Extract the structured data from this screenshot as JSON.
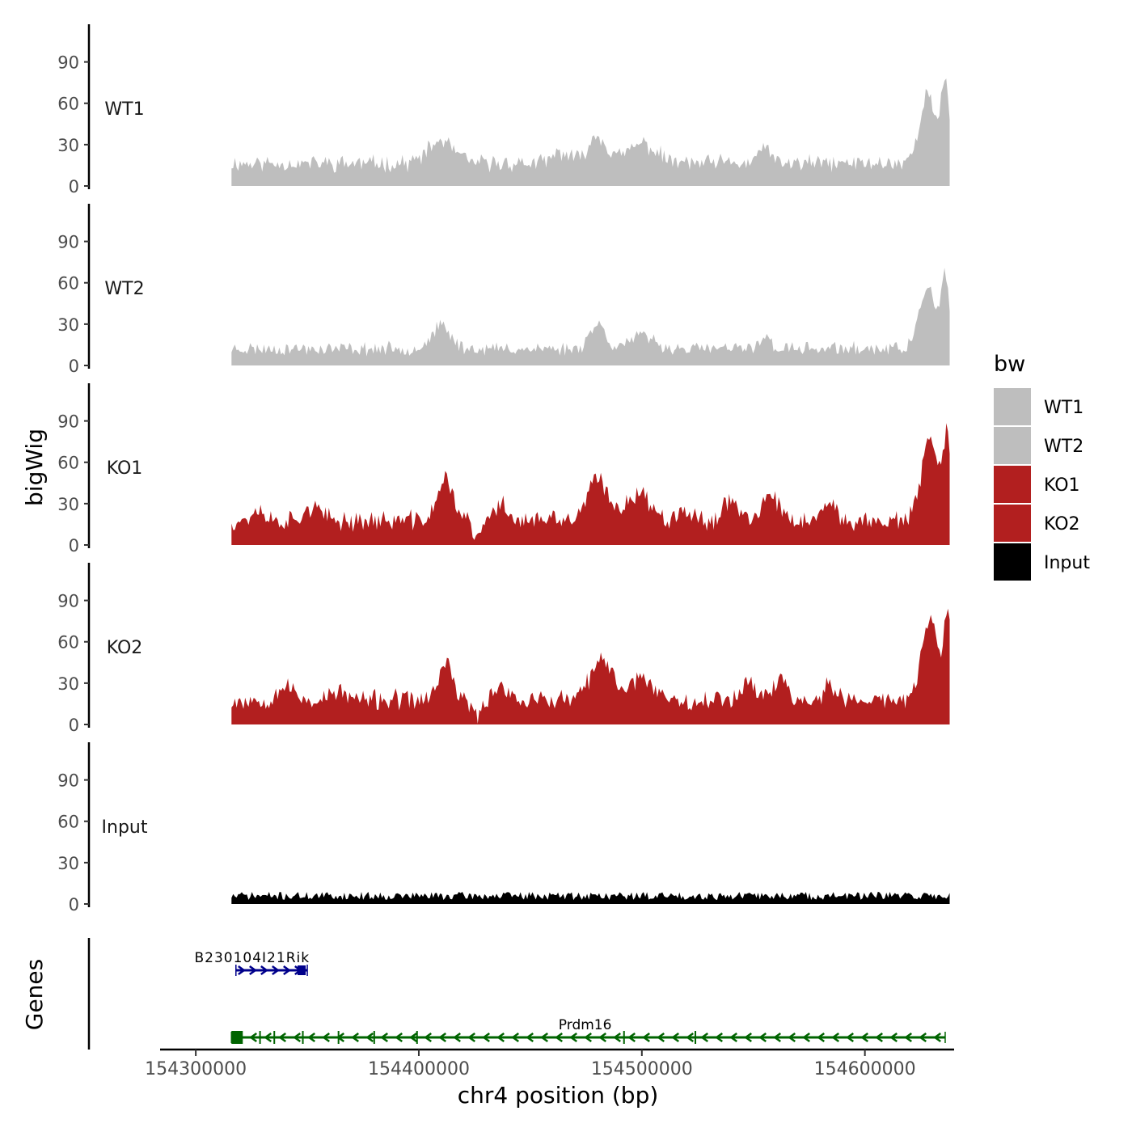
{
  "chart_data": {
    "type": "area",
    "ylabel": "bigWig",
    "genes_label": "Genes",
    "xlabel": "chr4 position (bp)",
    "xlim": [
      154284000,
      154640000
    ],
    "data_range": [
      154316000,
      154638000
    ],
    "ylim": [
      0,
      115
    ],
    "y_ticks": [
      0,
      30,
      60,
      90
    ],
    "y_tick_labels": [
      "0",
      "30",
      "60",
      "90"
    ],
    "x_ticks": [
      154300000,
      154400000,
      154500000,
      154600000
    ],
    "x_tick_labels": [
      "154300000",
      "154400000",
      "154500000",
      "154600000"
    ],
    "legend": {
      "title": "bw",
      "position": "right",
      "entries": [
        "WT1",
        "WT2",
        "KO1",
        "KO2",
        "Input"
      ]
    },
    "series": [
      {
        "name": "WT1",
        "color": "#bebebe",
        "baseline": 15,
        "noise": 5,
        "seed": 11,
        "peaks": [
          {
            "center": 154410000,
            "height": 16,
            "width": 8000
          },
          {
            "center": 154464000,
            "height": 8,
            "width": 5000
          },
          {
            "center": 154480000,
            "height": 20,
            "width": 6000
          },
          {
            "center": 154500000,
            "height": 14,
            "width": 9000
          },
          {
            "center": 154555000,
            "height": 14,
            "width": 3000
          },
          {
            "center": 154628000,
            "height": 50,
            "width": 5000
          },
          {
            "center": 154636000,
            "height": 58,
            "width": 2500
          }
        ]
      },
      {
        "name": "WT2",
        "color": "#bebebe",
        "baseline": 11,
        "noise": 4,
        "seed": 23,
        "peaks": [
          {
            "center": 154410000,
            "height": 16,
            "width": 6000
          },
          {
            "center": 154480000,
            "height": 18,
            "width": 5000
          },
          {
            "center": 154500000,
            "height": 9,
            "width": 8000
          },
          {
            "center": 154555000,
            "height": 10,
            "width": 3000
          },
          {
            "center": 154628000,
            "height": 45,
            "width": 5000
          },
          {
            "center": 154636000,
            "height": 50,
            "width": 2500
          }
        ]
      },
      {
        "name": "KO1",
        "color": "#b21f1f",
        "baseline": 16,
        "noise": 6,
        "seed": 37,
        "peaks": [
          {
            "center": 154328000,
            "height": 8,
            "width": 4000
          },
          {
            "center": 154352000,
            "height": 10,
            "width": 5000
          },
          {
            "center": 154412000,
            "height": 30,
            "width": 5000
          },
          {
            "center": 154426000,
            "height": -14,
            "width": 2500
          },
          {
            "center": 154437000,
            "height": 12,
            "width": 4000
          },
          {
            "center": 154480000,
            "height": 30,
            "width": 6000
          },
          {
            "center": 154498000,
            "height": 20,
            "width": 8000
          },
          {
            "center": 154518000,
            "height": 10,
            "width": 4000
          },
          {
            "center": 154540000,
            "height": 16,
            "width": 5000
          },
          {
            "center": 154558000,
            "height": 20,
            "width": 4000
          },
          {
            "center": 154584000,
            "height": 10,
            "width": 4000
          },
          {
            "center": 154629000,
            "height": 60,
            "width": 5000
          },
          {
            "center": 154637000,
            "height": 62,
            "width": 2500
          }
        ]
      },
      {
        "name": "KO2",
        "color": "#b21f1f",
        "baseline": 16,
        "noise": 6,
        "seed": 53,
        "peaks": [
          {
            "center": 154340000,
            "height": 10,
            "width": 5000
          },
          {
            "center": 154364000,
            "height": 6,
            "width": 5000
          },
          {
            "center": 154412000,
            "height": 26,
            "width": 4500
          },
          {
            "center": 154426000,
            "height": -14,
            "width": 2500
          },
          {
            "center": 154437000,
            "height": 12,
            "width": 4000
          },
          {
            "center": 154482000,
            "height": 28,
            "width": 7000
          },
          {
            "center": 154500000,
            "height": 16,
            "width": 8000
          },
          {
            "center": 154548000,
            "height": 14,
            "width": 5000
          },
          {
            "center": 154562000,
            "height": 16,
            "width": 4000
          },
          {
            "center": 154584000,
            "height": 10,
            "width": 4000
          },
          {
            "center": 154629000,
            "height": 58,
            "width": 5000
          },
          {
            "center": 154637000,
            "height": 62,
            "width": 2500
          }
        ]
      },
      {
        "name": "Input",
        "color": "#000000",
        "baseline": 5,
        "noise": 3,
        "seed": 71,
        "peaks": []
      }
    ],
    "genes": [
      {
        "name": "B230104I21Rik",
        "start": 154318000,
        "end": 154350000,
        "color": "#00008b",
        "row": 1,
        "strand": "+"
      },
      {
        "name": "Prdm16",
        "start": 154316000,
        "end": 154636000,
        "color": "#006400",
        "row": 2,
        "strand": "-"
      }
    ]
  }
}
